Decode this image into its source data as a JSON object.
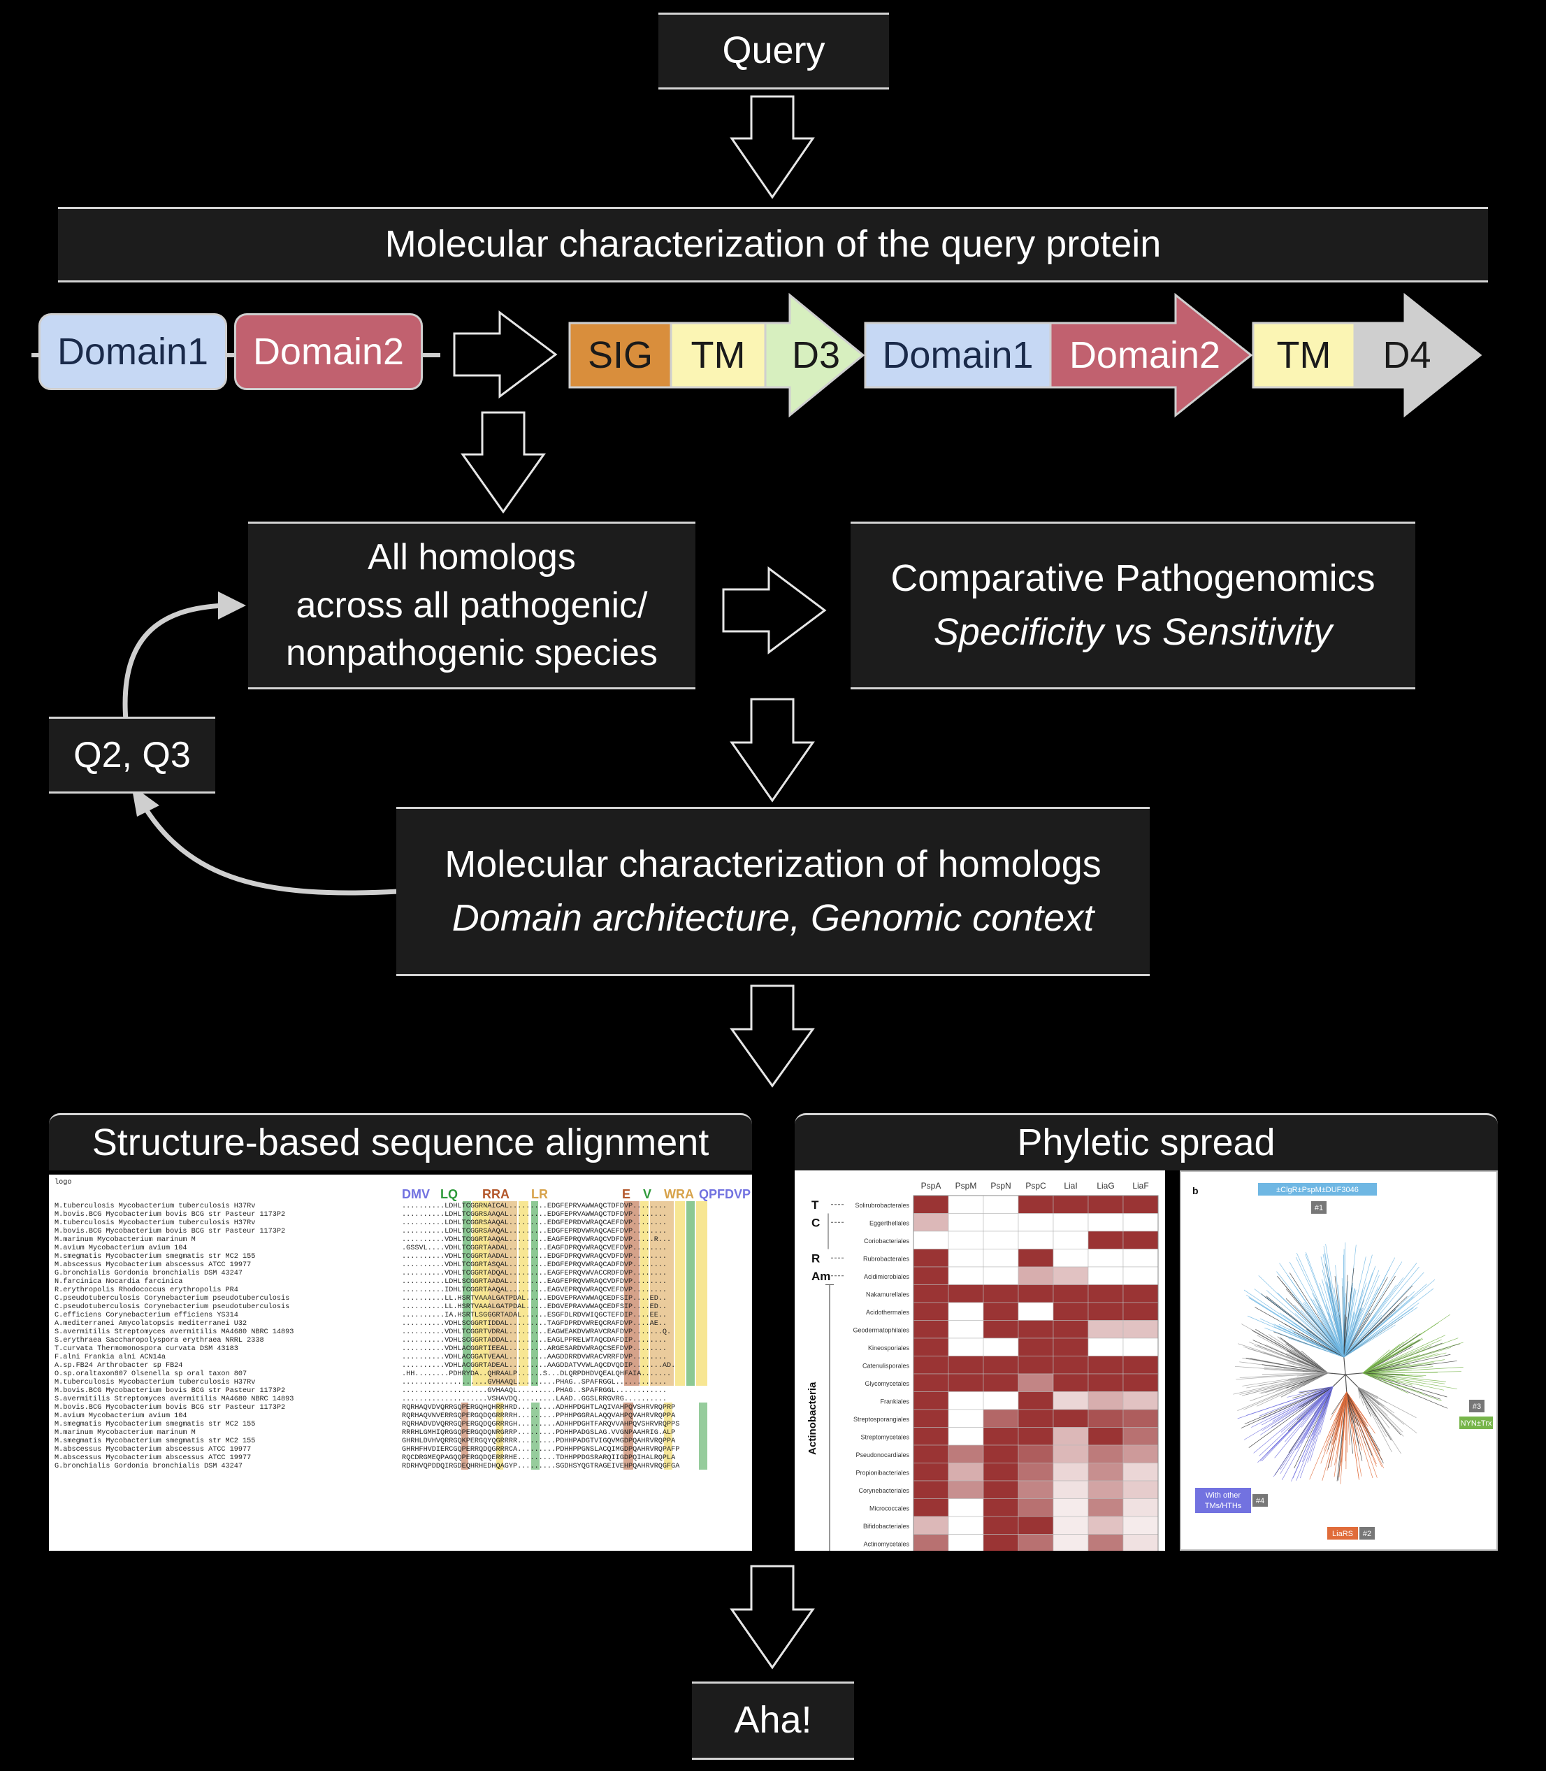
{
  "flow": {
    "query": "Query",
    "mol_query": "Molecular characterization of the query protein",
    "homologs": [
      "All homologs",
      "across all pathogenic/",
      "nonpathogenic species"
    ],
    "comparative": "Comparative Pathogenomics",
    "comparative_sub": "Specificity vs Sensitivity",
    "q2q3": "Q2, Q3",
    "mol_homologs": "Molecular characterization of homologs",
    "mol_homologs_sub": "Domain architecture, Genomic context",
    "aha": "Aha!"
  },
  "domains": {
    "pill1": "Domain1",
    "pill2": "Domain2",
    "gene1": [
      "SIG",
      "TM",
      "D3"
    ],
    "gene2": [
      "Domain1",
      "Domain2"
    ],
    "gene3": [
      "TM",
      "D4"
    ]
  },
  "colors": {
    "domain1": "#c6d8f4",
    "domain2": "#c1616f",
    "sig": "#d98e3c",
    "tm": "#fbf5b4",
    "d3": "#d7efbf",
    "d4": "#cfcfcf",
    "heat_dark": "#9a3434",
    "box_bg": "#1c1c1c"
  },
  "alignment": {
    "title": "Structure-based sequence alignment",
    "logo_label": "logo",
    "logo_letters": [
      "DMV",
      "LQ",
      "RRA",
      "LR",
      "E",
      "V",
      "WRA",
      "QPFDVP"
    ],
    "rows": [
      [
        "M.tuberculosis Mycobacterium tuberculosis H37Rv",
        "..........LDHLTCGGRNAICAL.........EDGFEPRVAWWAQCTDFDVP........"
      ],
      [
        "M.bovis.BCG Mycobacterium bovis BCG str Pasteur 1173P2",
        "..........LDHLTCGGRSAAQAL.........EDGFEPRVAWWAQCTDFDVP........"
      ],
      [
        "M.tuberculosis Mycobacterium tuberculosis H37Rv",
        "..........LDHLTCGGRSAAQAL.........EDGFEPRDVWRAQCAEFDVP........"
      ],
      [
        "M.bovis.BCG Mycobacterium bovis BCG str Pasteur 1173P2",
        "..........LDHLTCGGRSAAQAL.........EDGFEPRDVWRAQCAEFDVP........"
      ],
      [
        "M.marinum Mycobacterium marinum M",
        "..........VDHLTCGGRTAAQAL.........EAGFEPRQVWRAQCVDFDVP.....R..."
      ],
      [
        "M.avium Mycobacterium avium 104",
        ".GSSVL....VDHLTCGGRTAADAL.........EAGFDPRQVWRAQCVEFDVP........"
      ],
      [
        "M.smegmatis Mycobacterium smegmatis str MC2 155",
        "..........VDHLTCGGRTAADAL.........EDGFDPRQVWRAQCVDFDVP........"
      ],
      [
        "M.abscessus Mycobacterium abscessus ATCC 19977",
        "..........VDHLTCGGRTASQAL.........EDGFEPRQVWRAQCADFDVP........"
      ],
      [
        "G.bronchialis Gordonia bronchialis DSM 43247",
        "..........VDHLTCGGRTADQAL.........EAGFEPRQVWVACCRDFDVP........"
      ],
      [
        "N.farcinica Nocardia farcinica",
        "..........LDHLSCGGRTAADAL.........EAGFEPRQVWRAQCVDFDVP........"
      ],
      [
        "R.erythropolis Rhodococcus erythropolis PR4",
        "..........IDHLTCGGRTAAQAL.........EAGVEPRQVWRAQCVEFDVP........"
      ],
      [
        "C.pseudotuberculosis Corynebacterium pseudotuberculosis",
        "..........LL.HSRTVAAALGATPDAL.....EDGVEPRAVWWAQCEDFSIP....ED.."
      ],
      [
        "C.pseudotuberculosis Corynebacterium pseudotuberculosis",
        "..........LL.HSRTVAAALGATPDAL.....EDGVEPRAVWWAQCEDFSIP....ED.."
      ],
      [
        "C.efficiens Corynebacterium efficiens YS314",
        "..........IA.HSRTLSGGGRTADAL......ESGFDLRDVWIQGCTEFDIP....EE.."
      ],
      [
        "A.mediterranei Amycolatopsis mediterranei U32",
        "..........VDHLSCGGRTIDDAL.........TAGFDPRDVWREQCRAFDVP....AE.."
      ],
      [
        "S.avermitilis Streptomyces avermitilis MA4680 NBRC 14893",
        "..........VDHLTCGGRTVDRAL.........EAGWEAKDVWRAVCRAFDVP.......Q."
      ],
      [
        "S.erythraea Saccharopolyspora erythraea NRRL 2338",
        "..........VDHLSCGGRTADDAL.........EAGLPPRELWTAQCDAFDIP........"
      ],
      [
        "T.curvata Thermomonospora curvata DSM 43183",
        "..........VDHLACGGRTIEEAL.........ARGESARDVWRAQCSEFDVP........"
      ],
      [
        "F.alni Frankia alni ACN14a",
        "..........VDHLACGGATVEAAL.........AAGDDRRDVWRACVRRFDVP........"
      ],
      [
        "A.sp.FB24 Arthrobacter sp FB24",
        "..........VDHLACGGRTADEAL.........AAGDDATVVWLAQCDVQDIP.......AD."
      ],
      [
        "O.sp.oraltaxon807 Olsenella sp oral taxon 807",
        ".HH........PDHRYDA..QHRAALP......S...DLQRPDHDVQEALQHFAIA......."
      ],
      [
        "M.tuberculosis Mycobacterium tuberculosis H37Rv",
        "....................GVHAAQL.........PHAG..SPAFRGGL............"
      ],
      [
        "M.bovis.BCG Mycobacterium bovis BCG str Pasteur 1173P2",
        "....................GVHAAQL.........PHAG..SPAFRGGL............"
      ],
      [
        "S.avermitilis Streptomyces avermitilis MA4680 NBRC 14893",
        "....................VSHAVDQ.........LAAD..GGSLRRGVRG.........."
      ],
      [
        "M.bovis.BCG Mycobacterium bovis BCG str Pasteur 1173P2",
        "RQRHAQVDVQRRGQPERGQHQHRRHRD.........ADHHPDGHTLAQIVAHPQVSHRVRQPRP"
      ],
      [
        "M.avium Mycobacterium avium 104",
        "RQRHAQVNVERRGQPERGQDQGRRRRH.........PPHHPGGRALAQQVAHPQVAHRVRQPPA"
      ],
      [
        "M.smegmatis Mycobacterium smegmatis str MC2 155",
        "RQRHADVDVQRRGQPERGQDQGRRRGH.........ADHHPDGHTFARQVVAHPQVSHRVRQPPS"
      ],
      [
        "M.marinum Mycobacterium marinum M",
        "RRRHLGMHIQRGGQPERGQDQNRGRRP.........PDHHPADGSLAG.VVGNPAAHRIG.ALP"
      ],
      [
        "M.smegmatis Mycobacterium smegmatis str MC2 155",
        "GHRHLDVHVQRRGQKPERGQYQGRRRR.........PDHHPADGTVIGQVMGDPQAHRVRQPPA"
      ],
      [
        "M.abscessus Mycobacterium abscessus ATCC 19977",
        "GHRHFHVDIERCGQPERRQDQGRRRCA.........PDHHPPGNSLACQIMGDPQAHRVRQPAFP"
      ],
      [
        "M.abscessus Mycobacterium abscessus ATCC 19977",
        "RQCDRGMEQPAGQQPERGQDQERRRHE.........TDHHPPDGSRARQIIGDPQIHALRQPLA"
      ],
      [
        "G.bronchialis Gordonia bronchialis DSM 43247",
        "RDRHVQPDDQIRGDEQHRHEDHQAGYP.........SGDHSYQGTRAGEIVEHPQAHRVRQGFGA"
      ]
    ]
  },
  "phyletic": {
    "title": "Phyletic spread",
    "heatmap": {
      "columns": [
        "PspA",
        "PspM",
        "PspN",
        "PspC",
        "LiaI",
        "LiaG",
        "LiaF"
      ],
      "rows": [
        "Solirubrobacterales",
        "Eggerthellales",
        "Coriobacteriales",
        "Rubrobacterales",
        "Acidimicrobiales",
        "Nakamurellales",
        "Acidothermales",
        "Geodermatophilales",
        "Kineosporiales",
        "Catenulisporales",
        "Glycomycetales",
        "Frankiales",
        "Streptosporangiales",
        "Streptomycetales",
        "Pseudonocardiales",
        "Propionibacteriales",
        "Corynebacteriales",
        "Micrococcales",
        "Bifidobacteriales",
        "Actinomycetales"
      ],
      "values": [
        [
          1,
          0,
          0,
          1,
          1,
          1,
          1
        ],
        [
          0.35,
          0,
          0,
          0,
          0,
          0,
          0
        ],
        [
          0,
          0,
          0,
          0,
          0,
          1,
          1
        ],
        [
          1,
          0,
          0,
          1,
          0,
          0,
          0
        ],
        [
          1,
          0,
          0,
          0.4,
          0.3,
          0,
          0
        ],
        [
          1,
          1,
          1,
          1,
          1,
          1,
          1
        ],
        [
          1,
          0,
          1,
          0,
          1,
          1,
          1
        ],
        [
          1,
          0,
          1,
          1,
          1,
          0.3,
          0.3
        ],
        [
          1,
          0,
          0,
          1,
          1,
          0,
          0
        ],
        [
          1,
          1,
          1,
          1,
          1,
          1,
          1
        ],
        [
          1,
          1,
          1,
          0.6,
          1,
          1,
          1
        ],
        [
          1,
          0,
          0,
          1,
          0.2,
          0.4,
          0.3
        ],
        [
          1,
          0,
          0.75,
          1,
          1,
          0.85,
          0.8
        ],
        [
          1,
          0,
          1,
          1,
          0.35,
          1,
          0.7
        ],
        [
          1,
          0.65,
          1,
          0.8,
          0.35,
          0.65,
          0.5
        ],
        [
          1,
          0.4,
          1,
          0.7,
          0.2,
          0.55,
          0.2
        ],
        [
          1,
          0.55,
          1,
          0.6,
          0.15,
          0.45,
          0.25
        ],
        [
          1,
          0,
          1,
          0.7,
          0.1,
          0.6,
          0.15
        ],
        [
          0.35,
          0,
          1,
          1,
          0.1,
          0.3,
          0.1
        ],
        [
          0.7,
          0,
          1,
          0.7,
          0.1,
          0.65,
          0.15
        ]
      ],
      "group_labels": [
        "T",
        "C",
        "R",
        "Am"
      ],
      "actinobacteria_label": "Actinobacteria"
    },
    "tree": {
      "panel_label": "b",
      "top_label": "±ClgR±PspM±DUF3046",
      "tag1": "#1",
      "tag2": "#2",
      "tag3": "#3",
      "tag4": "#4",
      "nyn_label": "NYN±Trx",
      "liars_label": "LiaRS",
      "other_label": [
        "With other",
        "TMs/HTHs"
      ],
      "colors": {
        "blue": "#6fb7e3",
        "green": "#77b54a",
        "orange": "#e06c3a",
        "purple": "#7272e0",
        "gray": "#9a9a9a"
      }
    }
  }
}
